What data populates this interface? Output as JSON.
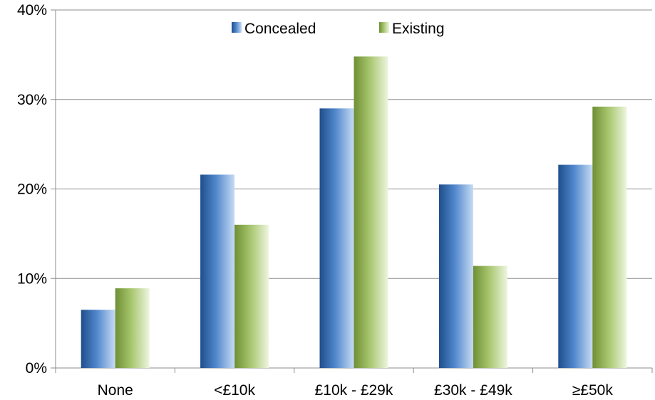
{
  "chart_data": {
    "type": "bar",
    "categories": [
      "None",
      "<£10k",
      "£10k - £29k",
      "£30k - £49k",
      "≥£50k"
    ],
    "series": [
      {
        "name": "Concealed",
        "values": [
          6.5,
          21.6,
          29.0,
          20.5,
          22.7
        ],
        "color": "#4a7fc1"
      },
      {
        "name": "Existing",
        "values": [
          8.9,
          16.0,
          34.8,
          11.4,
          29.2
        ],
        "color": "#9bbb59"
      }
    ],
    "ylim": [
      0,
      40
    ],
    "yticks": [
      "0%",
      "10%",
      "20%",
      "30%",
      "40%"
    ],
    "ytick_values": [
      0,
      10,
      20,
      30,
      40
    ],
    "grid": true,
    "legend_position": "top-center",
    "title": "",
    "xlabel": "",
    "ylabel": ""
  }
}
